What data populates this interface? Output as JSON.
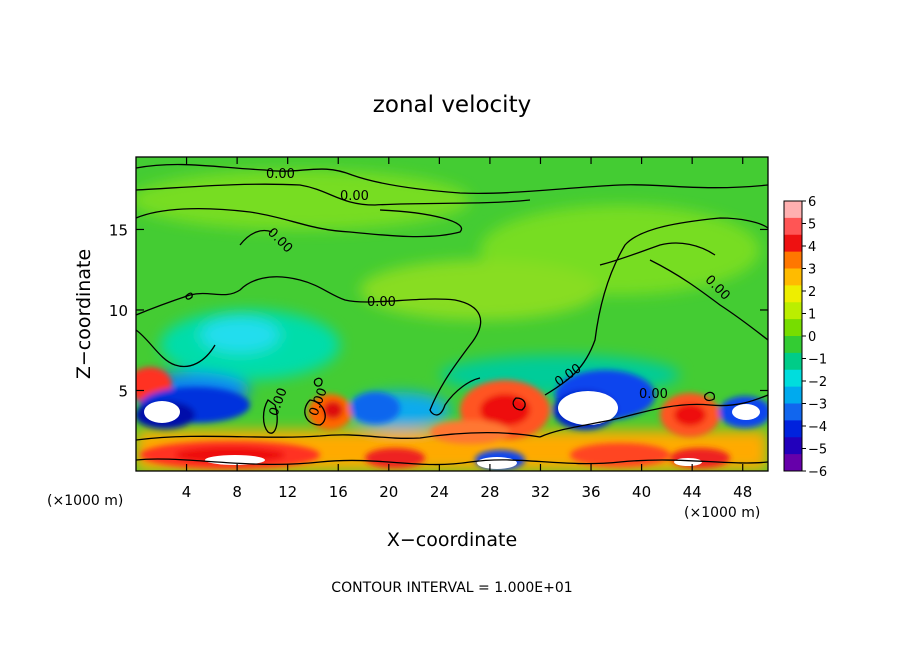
{
  "chart_data": {
    "type": "heatmap",
    "title": "zonal velocity",
    "xlabel": "X−coordinate",
    "ylabel": "Z−coordinate",
    "x_units_left": "(×1000 m)",
    "x_units_right": "(×1000 m)",
    "xlim": [
      0,
      50
    ],
    "ylim": [
      0,
      19.5
    ],
    "x_ticks": [
      "4",
      "8",
      "12",
      "16",
      "20",
      "24",
      "28",
      "32",
      "36",
      "40",
      "44",
      "48"
    ],
    "y_ticks": [
      "5",
      "10",
      "15"
    ],
    "colorbar": {
      "ticks": [
        "6",
        "5",
        "4",
        "3",
        "2",
        "1",
        "0",
        "−1",
        "−2",
        "−3",
        "−4",
        "−5",
        "−6"
      ],
      "colors": [
        "#ffb0b0",
        "#ff5555",
        "#ee1111",
        "#ff7700",
        "#ffbb00",
        "#eeee00",
        "#bbee00",
        "#77dd00",
        "#33cc33",
        "#00cc88",
        "#00dddd",
        "#00aaee",
        "#1166ee",
        "#0022dd",
        "#2200bb",
        "#6600aa"
      ]
    },
    "contour_labels": [
      "0.00",
      "0.00",
      "0.00",
      "0.00",
      "0.00",
      "0.00",
      "0.00",
      "0.00",
      "0.00"
    ],
    "footer": "CONTOUR INTERVAL = 1.000E+01"
  }
}
